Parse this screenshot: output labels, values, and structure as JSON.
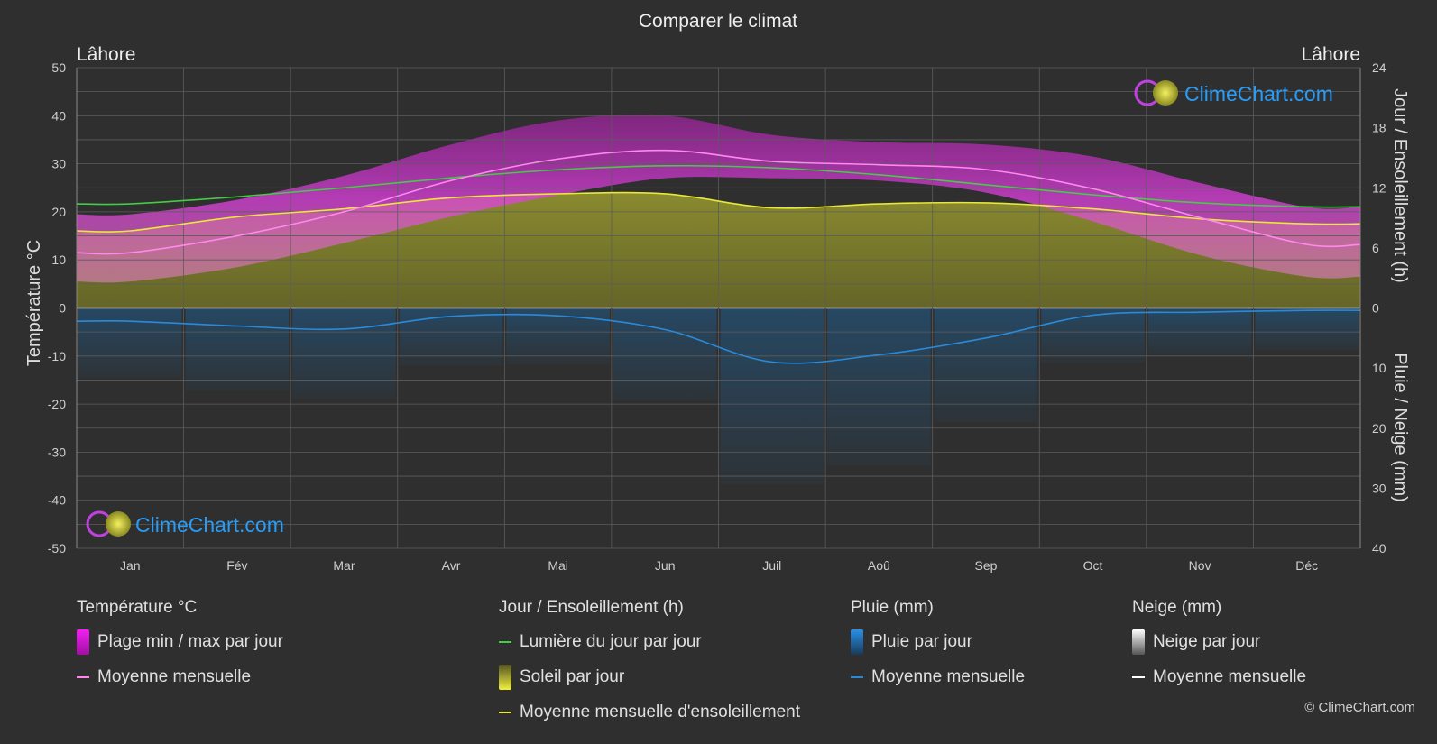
{
  "page": {
    "title": "Comparer le climat",
    "location_left": "Lâhore",
    "location_right": "Lâhore",
    "watermark": "ClimeChart.com",
    "copyright": "© ClimeChart.com"
  },
  "legend": {
    "temperature": {
      "title": "Température °C",
      "range_label": "Plage min / max par jour",
      "mean_label": "Moyenne mensuelle"
    },
    "daylight": {
      "title": "Jour / Ensoleillement (h)",
      "daylight_label": "Lumière du jour par jour",
      "sun_label": "Soleil par jour",
      "sun_mean_label": "Moyenne mensuelle d'ensoleillement"
    },
    "rain": {
      "title": "Pluie (mm)",
      "rain_label": "Pluie par jour",
      "mean_label": "Moyenne mensuelle"
    },
    "snow": {
      "title": "Neige (mm)",
      "snow_label": "Neige par jour",
      "mean_label": "Moyenne mensuelle"
    }
  },
  "colors": {
    "background": "#2f2f2f",
    "temp_mean": "#ff88ee",
    "temp_range": "#d020d0",
    "daylight": "#44cc44",
    "sunshine_mean": "#e8e838",
    "sunshine_fill": "#8a8a2a",
    "rain": "#2a8ad8",
    "snow": "#ffffff",
    "watermark": "#1e90ff"
  },
  "chart_data": {
    "type": "line",
    "categories": [
      "Jan",
      "Fév",
      "Mar",
      "Avr",
      "Mai",
      "Jun",
      "Juil",
      "Aoû",
      "Sep",
      "Oct",
      "Nov",
      "Déc"
    ],
    "y_left": {
      "label": "Température °C",
      "ylim": [
        -50,
        50
      ],
      "ticks": [
        "50",
        "40",
        "30",
        "20",
        "10",
        "0",
        "-10",
        "-20",
        "-30",
        "-40",
        "-50"
      ]
    },
    "y_right_top": {
      "label": "Jour / Ensoleillement (h)",
      "ylim": [
        0,
        24
      ],
      "ticks": [
        "24",
        "18",
        "12",
        "6",
        "0"
      ]
    },
    "y_right_bottom": {
      "label": "Pluie / Neige (mm)",
      "ylim": [
        0,
        40
      ],
      "ticks": [
        "10",
        "20",
        "30",
        "40"
      ]
    },
    "grid": true,
    "series": [
      {
        "name": "Moyenne mensuelle",
        "key": "temp_mean",
        "axis": "temp",
        "values": [
          11.5,
          15.0,
          20.0,
          26.5,
          31.0,
          32.8,
          30.5,
          29.8,
          28.8,
          24.8,
          18.8,
          13.2
        ]
      },
      {
        "name": "Plage min / max par jour (max)",
        "key": "temp_max",
        "axis": "temp",
        "values": [
          19.5,
          22.5,
          27.5,
          34.0,
          39.0,
          40.0,
          36.0,
          34.5,
          34.0,
          31.5,
          26.0,
          21.0
        ]
      },
      {
        "name": "Plage min / max par jour (min)",
        "key": "temp_min",
        "axis": "temp",
        "values": [
          5.5,
          8.5,
          13.5,
          19.0,
          23.5,
          27.0,
          27.0,
          26.5,
          24.0,
          18.0,
          11.0,
          6.5
        ]
      },
      {
        "name": "Lumière du jour par jour",
        "key": "daylight",
        "axis": "hours",
        "values": [
          10.4,
          11.1,
          12.0,
          13.0,
          13.8,
          14.2,
          14.0,
          13.3,
          12.3,
          11.3,
          10.5,
          10.1
        ]
      },
      {
        "name": "Moyenne mensuelle d'ensoleillement",
        "key": "sunshine",
        "axis": "hours",
        "values": [
          7.7,
          9.1,
          9.9,
          11.0,
          11.4,
          11.4,
          10.0,
          10.4,
          10.5,
          9.9,
          8.9,
          8.4
        ]
      },
      {
        "name": "Moyenne mensuelle",
        "key": "rain_mean",
        "axis": "rain",
        "values": [
          2.2,
          3.0,
          3.5,
          1.4,
          1.3,
          3.6,
          9.0,
          7.8,
          5.0,
          1.2,
          0.7,
          0.4
        ]
      }
    ]
  }
}
